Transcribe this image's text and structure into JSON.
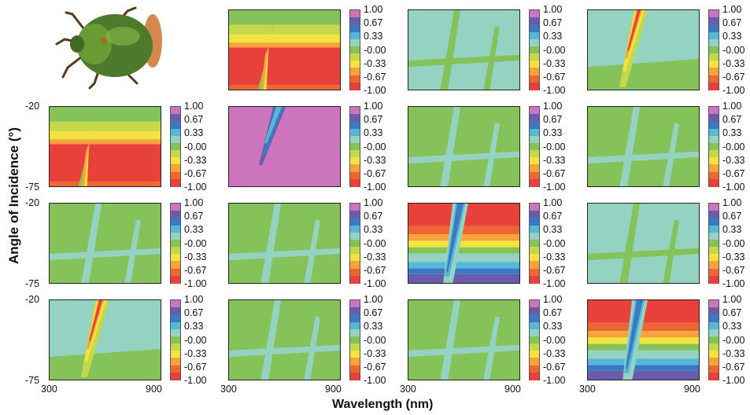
{
  "figure": {
    "xlabel": "Wavelength (nm)",
    "ylabel": "Angle of Incidence (°)",
    "x_ticks": [
      "300",
      "900"
    ],
    "y_ticks": [
      "-20",
      "-75"
    ],
    "colorbar_ticks": [
      "1.00",
      "0.67",
      "0.33",
      "-0.00",
      "-0.33",
      "-0.67",
      "-1.00"
    ],
    "colorbar_colors": [
      "#cc74bc",
      "#6a5cad",
      "#3e78c2",
      "#56b8d9",
      "#94d3c2",
      "#86c25a",
      "#c3d94b",
      "#f3e33e",
      "#f5a33a",
      "#ee6632",
      "#e8403a"
    ],
    "inset_image": "jewel-scarab-beetle-photo"
  },
  "chart_data": {
    "type": "heatmap",
    "description_grid": "4x4 matrix of contour maps, panel (row 0, col 0) replaced by beetle photo",
    "x_range": [
      300,
      900
    ],
    "y_range": [
      -75,
      -20
    ],
    "z_range": [
      -1.0,
      1.0
    ],
    "panels": [
      {
        "row": 0,
        "col": 1,
        "pattern": "red-low",
        "min": -1.0,
        "max": 0.0
      },
      {
        "row": 0,
        "col": 2,
        "pattern": "flat-neutral",
        "min": -0.33,
        "max": 0.0
      },
      {
        "row": 0,
        "col": 3,
        "pattern": "red-ridge",
        "min": -1.0,
        "max": 0.0
      },
      {
        "row": 1,
        "col": 0,
        "pattern": "red-low",
        "min": -1.0,
        "max": 0.0
      },
      {
        "row": 1,
        "col": 1,
        "pattern": "magenta-high",
        "min": 0.0,
        "max": 1.0
      },
      {
        "row": 1,
        "col": 2,
        "pattern": "flat-green",
        "min": -0.33,
        "max": 0.0
      },
      {
        "row": 1,
        "col": 3,
        "pattern": "flat-green",
        "min": -0.33,
        "max": 0.0
      },
      {
        "row": 2,
        "col": 0,
        "pattern": "flat-green",
        "min": -0.33,
        "max": 0.0
      },
      {
        "row": 2,
        "col": 1,
        "pattern": "flat-green",
        "min": -0.33,
        "max": 0.0
      },
      {
        "row": 2,
        "col": 2,
        "pattern": "red-top-purple-bottom",
        "min": -1.0,
        "max": 1.0
      },
      {
        "row": 2,
        "col": 3,
        "pattern": "flat-neutral",
        "min": -0.33,
        "max": 0.0
      },
      {
        "row": 3,
        "col": 0,
        "pattern": "red-ridge",
        "min": -1.0,
        "max": 0.0
      },
      {
        "row": 3,
        "col": 1,
        "pattern": "flat-green",
        "min": -0.33,
        "max": 0.0
      },
      {
        "row": 3,
        "col": 2,
        "pattern": "flat-green",
        "min": -0.33,
        "max": 0.0
      },
      {
        "row": 3,
        "col": 3,
        "pattern": "red-top-purple-bottom",
        "min": -1.0,
        "max": 1.0
      }
    ]
  }
}
